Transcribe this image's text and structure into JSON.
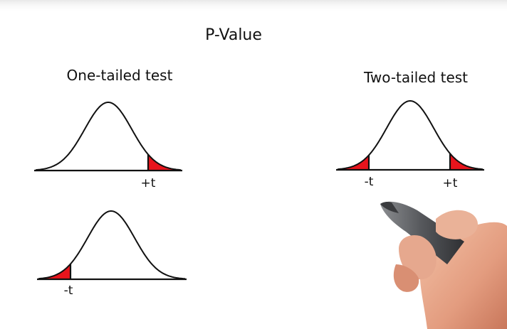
{
  "title": "P-Value",
  "one_tailed": {
    "heading": "One-tailed test",
    "upper_tail_label": "+t",
    "lower_tail_label": "-t"
  },
  "two_tailed": {
    "heading": "Two-tailed test",
    "lower_tail_label": "-t",
    "upper_tail_label": "+t"
  },
  "colors": {
    "tail_fill": "#e8141c",
    "ink": "#111111",
    "background": "#ffffff",
    "skin": "#e8a58a",
    "marker_body": "#5e6064"
  },
  "icons": {
    "hand": "hand-holding-marker-icon"
  }
}
